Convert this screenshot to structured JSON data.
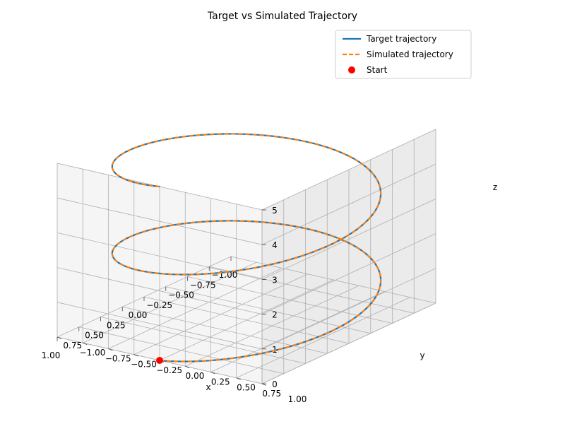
{
  "chart_data": {
    "type": "line3d",
    "title": "Target vs Simulated Trajectory",
    "xlabel": "x",
    "ylabel": "y",
    "zlabel": "z",
    "xlim": [
      -1.0,
      1.0
    ],
    "ylim": [
      -1.0,
      1.0
    ],
    "zlim": [
      0,
      5
    ],
    "xticks": [
      "−1.00",
      "−0.75",
      "−0.50",
      "−0.25",
      "0.00",
      "0.25",
      "0.50",
      "0.75",
      "1.00"
    ],
    "yticks": [
      "−1.00",
      "−0.75",
      "−0.50",
      "−0.25",
      "0.00",
      "0.25",
      "0.50",
      "0.75",
      "1.00"
    ],
    "zticks": [
      "0",
      "1",
      "2",
      "3",
      "4",
      "5"
    ],
    "grid": true,
    "legend_position": "top-right",
    "curve": {
      "shape": "helix",
      "x_of_t": "cos(t)",
      "y_of_t": "sin(t)",
      "z_of_t": "t/(2π)·2.5",
      "t_range": [
        0,
        12.566
      ],
      "turns": 2
    },
    "series": [
      {
        "name": "Target trajectory",
        "style": "solid",
        "color": "#1f77b4"
      },
      {
        "name": "Simulated trajectory",
        "style": "dashed",
        "color": "#ff7f0e"
      }
    ],
    "markers": [
      {
        "name": "Start",
        "x": 1.0,
        "y": 0.0,
        "z": 0.0,
        "color": "#ff0000"
      }
    ]
  }
}
